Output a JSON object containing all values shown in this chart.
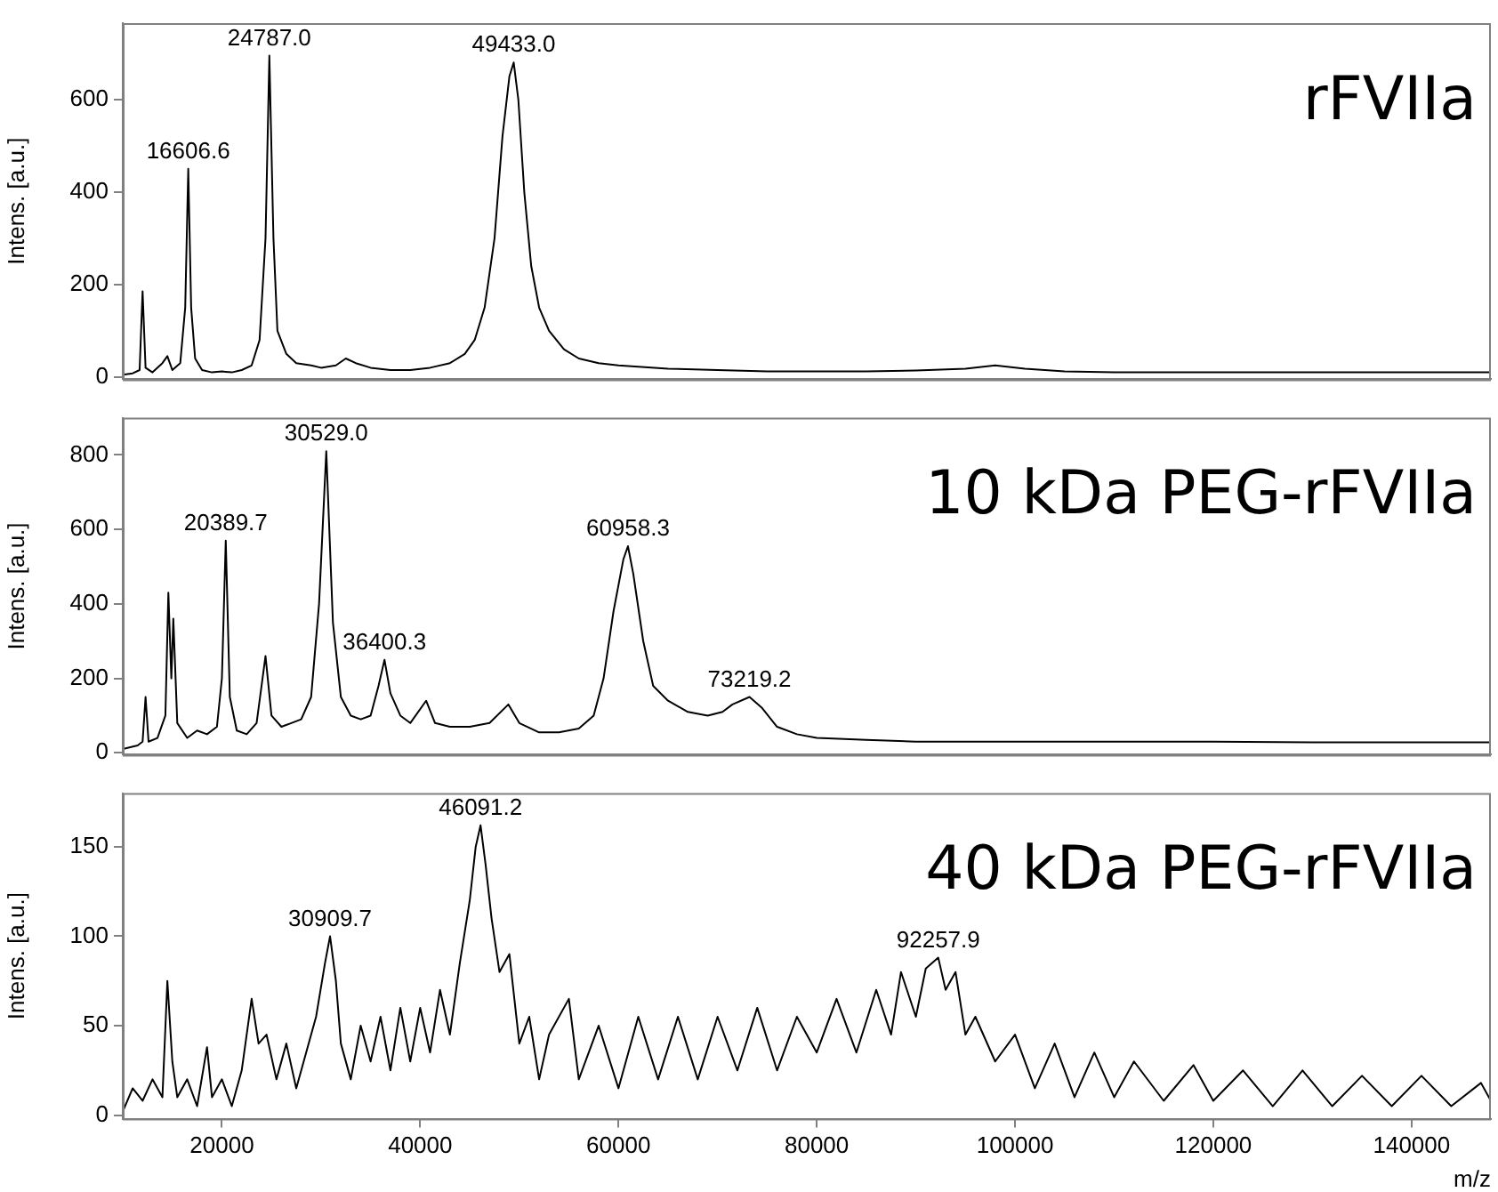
{
  "chart_data": [
    {
      "type": "line",
      "title": "rFVIIa",
      "ylabel": "Intens. [a.u.]",
      "xlim": [
        10000,
        148000
      ],
      "ylim": [
        -5,
        765
      ],
      "yticks": [
        0,
        200,
        400,
        600
      ],
      "tick_labels": "y",
      "grid": false,
      "legend": false,
      "marker": "none",
      "series": [
        {
          "color": "#000000",
          "x": [
            10000,
            11000,
            11700,
            12000,
            12300,
            13000,
            14000,
            14500,
            15000,
            15800,
            16300,
            16606.6,
            16900,
            17300,
            18000,
            19000,
            20000,
            21000,
            22000,
            23000,
            23800,
            24400,
            24787,
            25200,
            25600,
            26500,
            27500,
            29000,
            30000,
            31500,
            32500,
            33500,
            35000,
            37000,
            39000,
            41000,
            43000,
            44500,
            45500,
            46500,
            47500,
            48300,
            49000,
            49433,
            49900,
            50500,
            51200,
            52000,
            53000,
            54500,
            56000,
            58000,
            60000,
            65000,
            70000,
            75000,
            80000,
            85000,
            90000,
            95000,
            98000,
            101000,
            105000,
            110000,
            120000,
            130000,
            140000,
            148000
          ],
          "values": [
            5,
            8,
            15,
            185,
            20,
            10,
            30,
            45,
            15,
            30,
            150,
            450,
            150,
            40,
            15,
            10,
            12,
            10,
            15,
            25,
            80,
            300,
            695,
            300,
            100,
            50,
            30,
            25,
            20,
            25,
            40,
            30,
            20,
            15,
            15,
            20,
            30,
            50,
            80,
            150,
            300,
            520,
            650,
            680,
            600,
            400,
            240,
            150,
            100,
            60,
            40,
            30,
            25,
            18,
            15,
            12,
            12,
            12,
            14,
            18,
            25,
            18,
            12,
            10,
            10,
            10,
            10,
            10
          ]
        }
      ],
      "annotations": [
        {
          "text": "16606.6",
          "x": 16606.6,
          "y": 450
        },
        {
          "text": "24787.0",
          "x": 24787,
          "y": 695
        },
        {
          "text": "49433.0",
          "x": 49433,
          "y": 680
        }
      ]
    },
    {
      "type": "line",
      "title": "10 kDa PEG-rFVIIa",
      "ylabel": "Intens. [a.u.]",
      "xlim": [
        10000,
        148000
      ],
      "ylim": [
        -5,
        900
      ],
      "yticks": [
        0,
        200,
        400,
        600,
        800
      ],
      "tick_labels": "y",
      "grid": false,
      "legend": false,
      "marker": "none",
      "series": [
        {
          "color": "#000000",
          "x": [
            10000,
            11500,
            12000,
            12300,
            12600,
            13500,
            14300,
            14600,
            14900,
            15100,
            15500,
            16500,
            17500,
            18500,
            19500,
            20000,
            20389.7,
            20800,
            21500,
            22500,
            23500,
            24400,
            25000,
            26000,
            27000,
            28000,
            29000,
            29800,
            30529,
            31200,
            32000,
            33000,
            34000,
            35000,
            35800,
            36400.3,
            37000,
            38000,
            39000,
            40600,
            41500,
            43000,
            45000,
            47000,
            48900,
            50000,
            52000,
            54000,
            56000,
            57500,
            58500,
            59500,
            60500,
            60958.3,
            61500,
            62500,
            63500,
            65000,
            67000,
            69000,
            70500,
            71500,
            73219.2,
            74500,
            76000,
            78000,
            80000,
            85000,
            90000,
            100000,
            110000,
            120000,
            130000,
            140000,
            148000
          ],
          "values": [
            10,
            20,
            30,
            150,
            30,
            40,
            100,
            430,
            200,
            360,
            80,
            40,
            60,
            50,
            70,
            200,
            570,
            150,
            60,
            50,
            80,
            260,
            100,
            70,
            80,
            90,
            150,
            400,
            810,
            350,
            150,
            100,
            90,
            100,
            180,
            250,
            160,
            100,
            80,
            140,
            80,
            70,
            70,
            80,
            130,
            80,
            55,
            55,
            65,
            100,
            200,
            380,
            520,
            555,
            480,
            300,
            180,
            140,
            110,
            100,
            110,
            130,
            150,
            120,
            70,
            50,
            40,
            35,
            30,
            30,
            30,
            30,
            28,
            28,
            28
          ]
        }
      ],
      "annotations": [
        {
          "text": "20389.7",
          "x": 20389.7,
          "y": 570
        },
        {
          "text": "30529.0",
          "x": 30529,
          "y": 810
        },
        {
          "text": "36400.3",
          "x": 36400.3,
          "y": 250
        },
        {
          "text": "60958.3",
          "x": 60958.3,
          "y": 555
        },
        {
          "text": "73219.2",
          "x": 73219.2,
          "y": 150
        }
      ]
    },
    {
      "type": "line",
      "title": "40 kDa PEG-rFVIIa",
      "xlabel": "m/z",
      "ylabel": "Intens. [a.u.]",
      "xlim": [
        10000,
        148000
      ],
      "xticks": [
        20000,
        40000,
        60000,
        80000,
        100000,
        120000,
        140000
      ],
      "ylim": [
        -2,
        180
      ],
      "yticks": [
        0,
        50,
        100,
        150
      ],
      "grid": false,
      "legend": false,
      "marker": "none",
      "series": [
        {
          "color": "#000000",
          "x": [
            10000,
            11000,
            12000,
            13000,
            14000,
            14500,
            15000,
            15500,
            16500,
            17500,
            18500,
            19000,
            20000,
            21000,
            22000,
            23000,
            23700,
            24500,
            25500,
            26500,
            27500,
            28500,
            29500,
            30400,
            30909.7,
            31500,
            32000,
            33000,
            34000,
            35000,
            36000,
            37000,
            38000,
            39000,
            40000,
            41000,
            42000,
            43000,
            44000,
            45000,
            45600,
            46091.2,
            46600,
            47200,
            48000,
            49000,
            50000,
            51000,
            52000,
            53000,
            55000,
            56000,
            58000,
            60000,
            62000,
            64000,
            66000,
            68000,
            70000,
            72000,
            74000,
            76000,
            78000,
            80000,
            82000,
            84000,
            86000,
            87500,
            88500,
            90000,
            91000,
            92257.9,
            93000,
            94000,
            95000,
            96000,
            98000,
            100000,
            102000,
            104000,
            106000,
            108000,
            110000,
            112000,
            115000,
            118000,
            120000,
            123000,
            126000,
            129000,
            132000,
            135000,
            138000,
            141000,
            144000,
            147000,
            148000
          ],
          "values": [
            2,
            15,
            8,
            20,
            10,
            75,
            30,
            10,
            20,
            5,
            38,
            10,
            20,
            5,
            25,
            65,
            40,
            45,
            20,
            40,
            15,
            35,
            55,
            85,
            100,
            75,
            40,
            20,
            50,
            30,
            55,
            25,
            60,
            30,
            60,
            35,
            70,
            45,
            85,
            120,
            150,
            162,
            140,
            110,
            80,
            90,
            40,
            55,
            20,
            45,
            65,
            20,
            50,
            15,
            55,
            20,
            55,
            20,
            55,
            25,
            60,
            25,
            55,
            35,
            65,
            35,
            70,
            45,
            80,
            55,
            82,
            88,
            70,
            80,
            45,
            55,
            30,
            45,
            15,
            40,
            10,
            35,
            10,
            30,
            8,
            28,
            8,
            25,
            5,
            25,
            5,
            22,
            5,
            22,
            5,
            18,
            8
          ]
        }
      ],
      "annotations": [
        {
          "text": "30909.7",
          "x": 30909.7,
          "y": 100
        },
        {
          "text": "46091.2",
          "x": 46091.2,
          "y": 162
        },
        {
          "text": "92257.9",
          "x": 92257.9,
          "y": 88
        }
      ]
    }
  ]
}
